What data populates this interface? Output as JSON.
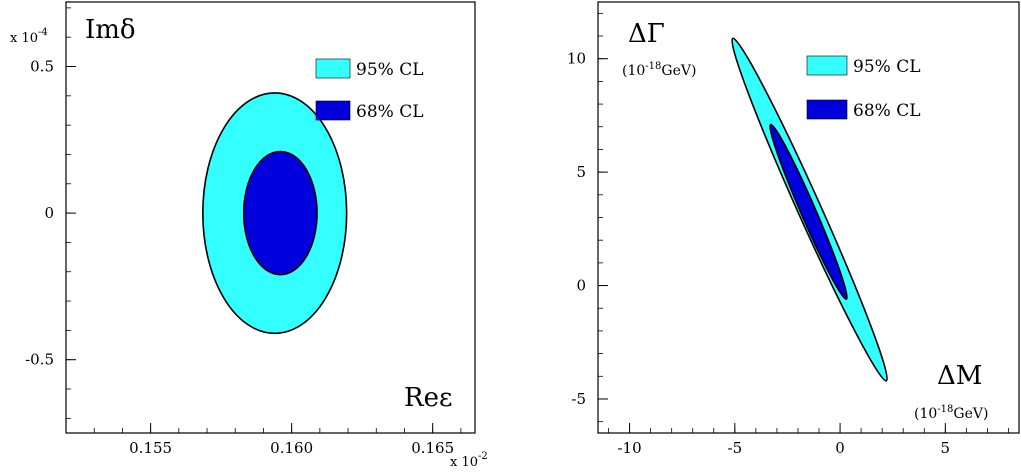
{
  "chart_data": [
    {
      "type": "contour",
      "x_exponent_label": "x 10",
      "x_exponent_power": "-2",
      "y_exponent_label": "x 10",
      "y_exponent_power": "-4",
      "x_ticks": [
        "0.155",
        "0.160",
        "0.165"
      ],
      "y_ticks": [
        "0.5",
        "0",
        "-0.5"
      ],
      "xlim": [
        0.152,
        0.1665
      ],
      "ylim": [
        -0.75,
        0.72
      ],
      "title_y": "Imδ",
      "title_x": "Reε",
      "legend": [
        {
          "label": "95% CL",
          "color": "#33ffff"
        },
        {
          "label": "68% CL",
          "color": "#0000dd"
        }
      ],
      "series": [
        {
          "name": "95% CL",
          "color": "#33ffff",
          "center": [
            0.1594,
            0.0
          ],
          "rx": 0.00255,
          "ry": 0.41
        },
        {
          "name": "68% CL",
          "color": "#0000dd",
          "center": [
            0.1596,
            0.0
          ],
          "rx": 0.0013,
          "ry": 0.21
        }
      ]
    },
    {
      "type": "contour",
      "x_ticks": [
        "-10",
        "-5",
        "0",
        "5"
      ],
      "y_ticks": [
        "10",
        "5",
        "0",
        "-5"
      ],
      "xlim": [
        -11.5,
        8.5
      ],
      "ylim": [
        -6.5,
        12.5
      ],
      "title_y": "ΔΓ",
      "y_unit_base": "(10",
      "y_unit_power": "-18",
      "y_unit_tail": "GeV)",
      "title_x": "ΔM",
      "x_unit_base": "(10",
      "x_unit_power": "-18",
      "x_unit_tail": "GeV)",
      "legend": [
        {
          "label": "95% CL",
          "color": "#33ffff"
        },
        {
          "label": "68% CL",
          "color": "#0000dd"
        }
      ],
      "series": [
        {
          "name": "95% CL",
          "color": "#33ffff",
          "endpoints": [
            [
              -5.1,
              10.9
            ],
            [
              2.2,
              -4.2
            ]
          ],
          "half_width": 0.55
        },
        {
          "name": "68% CL",
          "color": "#0000dd",
          "endpoints": [
            [
              -3.3,
              7.1
            ],
            [
              0.3,
              -0.6
            ]
          ],
          "half_width": 0.35
        }
      ]
    }
  ]
}
